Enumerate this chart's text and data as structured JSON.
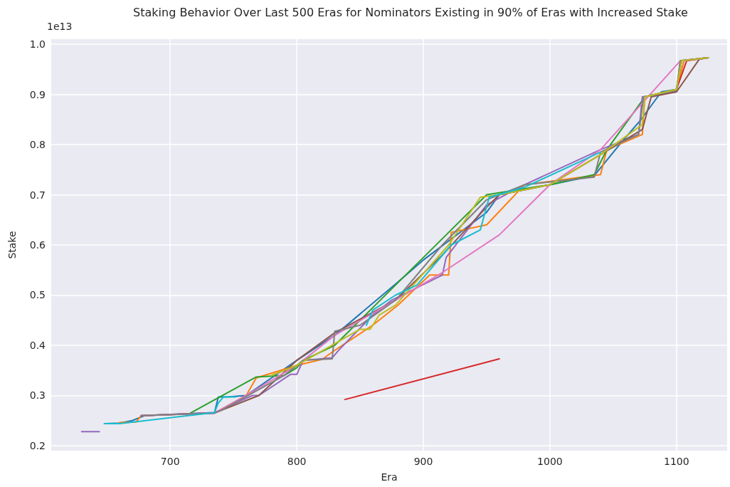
{
  "chart_data": {
    "type": "line",
    "title": "Staking Behavior Over Last 500 Eras for Nominators Existing in 90% of Eras with Increased Stake",
    "xlabel": "Era",
    "ylabel": "Stake",
    "annotations": [
      "1e13"
    ],
    "grid": true,
    "xlim": [
      606,
      1140
    ],
    "xticks": [
      700,
      800,
      900,
      1000,
      1100
    ],
    "ylim": [
      0.19,
      1.01
    ],
    "yticks": [
      0.2,
      0.3,
      0.4,
      0.5,
      0.6,
      0.7,
      0.8,
      0.9,
      {
        "value": 1,
        "label": "1.0"
      }
    ],
    "series": [
      {
        "color": "#1f77b4",
        "x": [
          648,
          660,
          670,
          680,
          735,
          738,
          745,
          760,
          800,
          830,
          878,
          900,
          950,
          960,
          1000,
          1035,
          1055,
          1072,
          1088,
          1100,
          1104,
          1125
        ],
        "values": [
          0.244,
          0.245,
          0.25,
          0.26,
          0.266,
          0.297,
          0.297,
          0.3,
          0.37,
          0.42,
          0.522,
          0.57,
          0.665,
          0.7,
          0.72,
          0.738,
          0.8,
          0.85,
          0.905,
          0.91,
          0.967,
          0.973
        ]
      },
      {
        "color": "#ff7f0e",
        "x": [
          660,
          673,
          677,
          735,
          760,
          768,
          800,
          820,
          830,
          860,
          880,
          905,
          920,
          922,
          950,
          980,
          1040,
          1045,
          1073,
          1075,
          1100,
          1106
        ],
        "values": [
          0.246,
          0.247,
          0.26,
          0.265,
          0.3,
          0.335,
          0.36,
          0.372,
          0.39,
          0.44,
          0.48,
          0.54,
          0.54,
          0.625,
          0.64,
          0.72,
          0.74,
          0.79,
          0.82,
          0.895,
          0.91,
          0.967
        ]
      },
      {
        "color": "#2ca02c",
        "x": [
          716,
          768,
          790,
          800,
          805,
          830,
          878,
          920,
          950,
          1000,
          1035,
          1045,
          1075,
          1100,
          1104,
          1125
        ],
        "values": [
          0.265,
          0.337,
          0.34,
          0.355,
          0.37,
          0.4,
          0.52,
          0.625,
          0.7,
          0.72,
          0.74,
          0.79,
          0.895,
          0.91,
          0.967,
          0.973
        ]
      },
      {
        "color": "#d62728",
        "x": [
          838,
          960,
          1030,
          1100,
          1108,
          1125
        ],
        "values": [
          0.292,
          0.373,
          null,
          0.91,
          0.967,
          0.973
        ]
      },
      {
        "color": "#9467bd",
        "x": [
          630,
          644,
          660,
          677,
          735,
          765,
          770,
          795,
          800,
          805,
          828,
          833,
          860,
          875,
          915,
          918,
          950,
          980,
          1040,
          1070,
          1073,
          1100,
          1103,
          1125
        ],
        "values": [
          0.228,
          0.228,
          null,
          0.26,
          0.266,
          0.3,
          0.3,
          0.342,
          0.342,
          0.37,
          0.375,
          0.39,
          0.46,
          0.49,
          0.54,
          0.575,
          0.68,
          0.72,
          0.79,
          0.82,
          0.895,
          0.905,
          0.967,
          0.973
        ]
      },
      {
        "color": "#8c564b",
        "x": [
          677,
          735,
          770,
          800,
          830,
          878,
          915,
          948,
          960,
          1000,
          1040,
          1073,
          1080,
          1100,
          1118,
          1125
        ],
        "values": [
          0.26,
          0.265,
          0.3,
          0.37,
          0.425,
          0.49,
          0.58,
          0.67,
          0.7,
          0.72,
          0.78,
          0.83,
          0.895,
          0.905,
          0.97,
          0.973
        ]
      },
      {
        "color": "#e377c2",
        "x": [
          677,
          735,
          760,
          800,
          830,
          878,
          915,
          960,
          1000,
          1040,
          1103,
          1125
        ],
        "values": [
          0.26,
          0.265,
          0.3,
          0.36,
          0.42,
          0.49,
          0.545,
          0.62,
          0.72,
          0.79,
          0.967,
          0.973
        ]
      },
      {
        "color": "#7f7f7f",
        "x": [
          677,
          735,
          740,
          790,
          800,
          805,
          828,
          830,
          850,
          878,
          915,
          950,
          980,
          1035,
          1040,
          1070,
          1074,
          1100,
          1103,
          1125
        ],
        "values": [
          0.26,
          0.265,
          0.27,
          0.34,
          0.36,
          0.37,
          0.373,
          0.428,
          0.44,
          0.49,
          0.6,
          0.69,
          0.72,
          0.735,
          0.785,
          0.82,
          0.895,
          0.908,
          0.967,
          0.973
        ]
      },
      {
        "color": "#bcbd22",
        "x": [
          780,
          800,
          850,
          858,
          865,
          878,
          920,
          945,
          960,
          1000,
          1040,
          1073,
          1075,
          1100,
          1104,
          1125
        ],
        "values": [
          0.34,
          0.36,
          0.432,
          0.432,
          0.46,
          0.48,
          0.6,
          0.695,
          0.7,
          0.72,
          0.78,
          0.84,
          0.895,
          0.91,
          0.967,
          0.973
        ]
      },
      {
        "color": "#17becf",
        "x": [
          648,
          660,
          735,
          738,
          742,
          752,
          800,
          855,
          860,
          878,
          895,
          922,
          945,
          952,
          980,
          1040
        ],
        "values": [
          0.244,
          0.244,
          0.266,
          0.285,
          0.297,
          0.297,
          null,
          0.44,
          0.47,
          0.5,
          0.52,
          0.6,
          0.63,
          0.695,
          0.715,
          0.785
        ]
      }
    ]
  }
}
